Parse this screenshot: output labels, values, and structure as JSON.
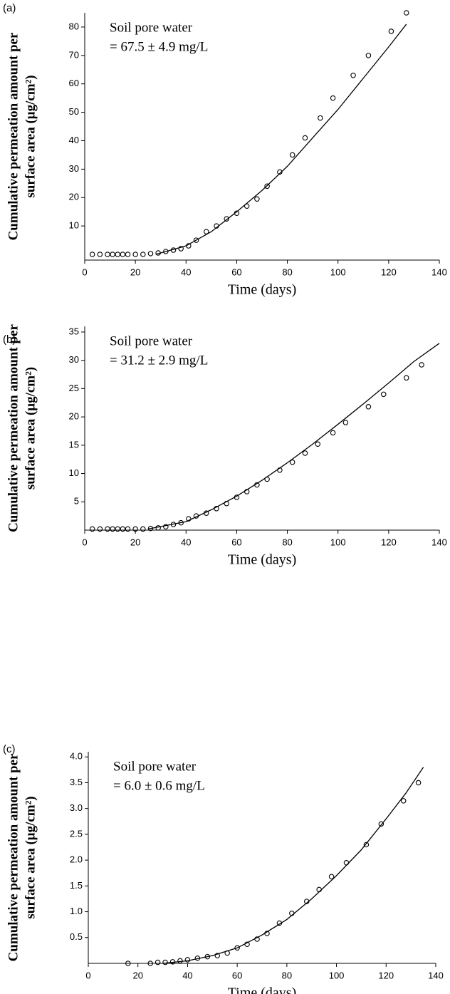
{
  "chart_data": [
    {
      "type": "scatter",
      "panel_label": "(a)",
      "annotation": [
        "Soil pore water",
        "= 67.5 ± 4.9 mg/L"
      ],
      "y_label": [
        "Cumulative permeation amount per",
        "surface area (μg/cm²)"
      ],
      "x_label": "Time (days)",
      "xlim": [
        0,
        140
      ],
      "xticks": [
        0,
        20,
        40,
        60,
        80,
        100,
        120,
        140
      ],
      "ylim": [
        -2,
        85
      ],
      "yticks": [
        10,
        20,
        30,
        40,
        50,
        60,
        70,
        80
      ],
      "series": [
        {
          "marker": "circle",
          "color": "#000000",
          "x": [
            3,
            6,
            9,
            11,
            13,
            15,
            17,
            20,
            23,
            26,
            29,
            32,
            35,
            38,
            41,
            44,
            48,
            52,
            56,
            60,
            64,
            68,
            72,
            77,
            82,
            87,
            93,
            98,
            106,
            112,
            121,
            127
          ],
          "values": [
            0,
            0,
            0,
            0,
            0,
            0,
            0,
            0,
            0,
            0.3,
            0.5,
            1,
            1.5,
            2,
            3,
            5,
            8,
            10,
            12.5,
            14.5,
            17,
            19.5,
            24,
            29,
            35,
            41,
            48,
            55,
            63,
            70,
            78.5,
            85
          ]
        },
        {
          "marker": "line",
          "color": "#000000",
          "x": [
            28,
            40,
            50,
            60,
            70,
            80,
            90,
            100,
            110,
            120,
            127
          ],
          "values": [
            0,
            3,
            8,
            15,
            22.5,
            31,
            41,
            51,
            62,
            73,
            81
          ]
        }
      ]
    },
    {
      "type": "scatter",
      "panel_label": "(b)",
      "annotation": [
        "Soil pore water",
        "= 31.2 ± 2.9 mg/L"
      ],
      "y_label": [
        "Cumulative permeation amount per",
        "surface area (μg/cm²)"
      ],
      "x_label": "Time (days)",
      "xlim": [
        0,
        140
      ],
      "xticks": [
        0,
        20,
        40,
        60,
        80,
        100,
        120,
        140
      ],
      "ylim": [
        0,
        36
      ],
      "yticks": [
        5,
        10,
        15,
        20,
        25,
        30,
        35
      ],
      "series": [
        {
          "marker": "circle",
          "color": "#000000",
          "x": [
            3,
            6,
            9,
            11,
            13,
            15,
            17,
            20,
            23,
            26,
            29,
            32,
            35,
            38,
            41,
            44,
            48,
            52,
            56,
            60,
            64,
            68,
            72,
            77,
            82,
            87,
            92,
            98,
            103,
            112,
            118,
            127,
            133
          ],
          "values": [
            0.2,
            0.2,
            0.2,
            0.2,
            0.2,
            0.2,
            0.2,
            0.2,
            0.2,
            0.3,
            0.4,
            0.6,
            1,
            1.3,
            2,
            2.5,
            3,
            3.8,
            4.7,
            5.8,
            6.8,
            8,
            9,
            10.6,
            12,
            13.6,
            15.2,
            17.2,
            19,
            21.8,
            24,
            26.9,
            29.2
          ]
        },
        {
          "marker": "line",
          "color": "#000000",
          "x": [
            25,
            40,
            50,
            60,
            70,
            80,
            90,
            100,
            110,
            120,
            130,
            140
          ],
          "values": [
            0.2,
            1.5,
            3.6,
            6,
            8.8,
            11.9,
            15.2,
            18.7,
            22.3,
            26,
            29.8,
            33
          ]
        }
      ]
    },
    {
      "type": "scatter",
      "panel_label": "(c)",
      "annotation": [
        "Soil pore water",
        "= 6.0 ± 0.6 mg/L"
      ],
      "y_label": [
        "Cumulative permeation amount per",
        "surface area (μg/cm²)"
      ],
      "x_label": "Time (days)",
      "xlim": [
        0,
        140
      ],
      "xticks": [
        0,
        20,
        40,
        60,
        80,
        100,
        120,
        140
      ],
      "ylim": [
        0,
        4.1
      ],
      "yticks": [
        0.5,
        {
          "value": 1,
          "label": "1.0"
        },
        1.5,
        {
          "value": 2,
          "label": "2.0"
        },
        2.5,
        {
          "value": 3,
          "label": "3.0"
        },
        3.5,
        {
          "value": 4,
          "label": "4.0"
        }
      ],
      "series": [
        {
          "marker": "circle",
          "color": "#000000",
          "x": [
            16,
            25,
            28,
            31,
            34,
            37,
            40,
            44,
            48,
            52,
            56,
            60,
            64,
            68,
            72,
            77,
            82,
            88,
            93,
            98,
            104,
            112,
            118,
            127,
            133
          ],
          "values": [
            0,
            0,
            0.02,
            0.02,
            0.03,
            0.05,
            0.07,
            0.1,
            0.13,
            0.15,
            0.2,
            0.3,
            0.37,
            0.47,
            0.58,
            0.78,
            0.97,
            1.2,
            1.43,
            1.68,
            1.95,
            2.3,
            2.7,
            3.15,
            3.5
          ]
        },
        {
          "marker": "line",
          "color": "#000000",
          "x": [
            30,
            40,
            50,
            60,
            70,
            80,
            90,
            100,
            110,
            120,
            128,
            135
          ],
          "values": [
            0,
            0.05,
            0.15,
            0.3,
            0.55,
            0.85,
            1.25,
            1.7,
            2.2,
            2.8,
            3.3,
            3.8
          ]
        }
      ]
    }
  ]
}
